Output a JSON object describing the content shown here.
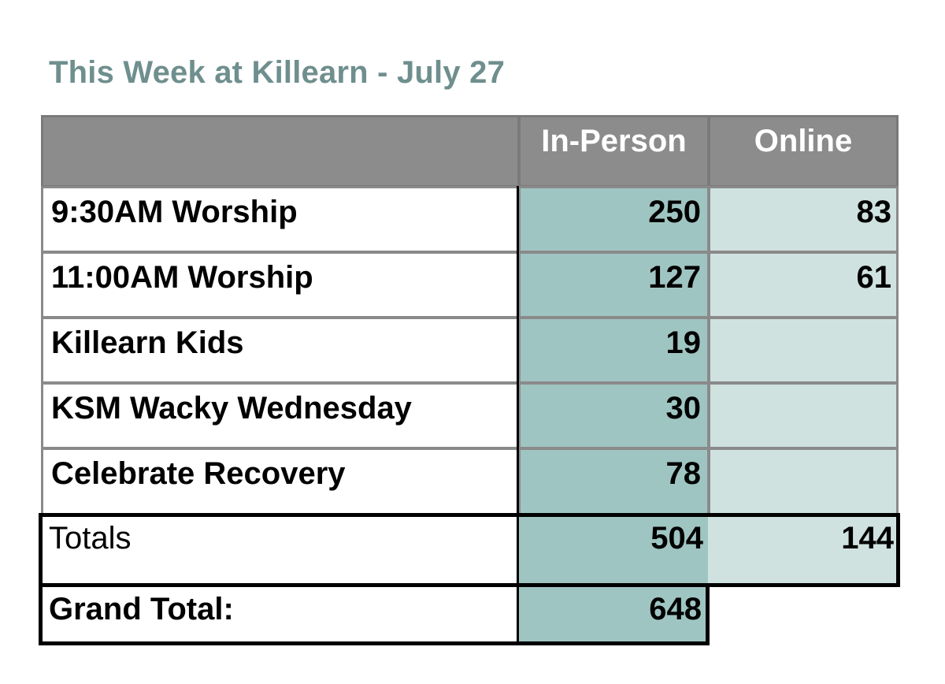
{
  "title": "This Week at Killearn - July 27",
  "table": {
    "headers": [
      "",
      "In-Person",
      "Online"
    ],
    "rows": [
      {
        "label": "9:30AM Worship",
        "in_person": "250",
        "online": "83"
      },
      {
        "label": "11:00AM Worship",
        "in_person": "127",
        "online": "61"
      },
      {
        "label": "Killearn Kids",
        "in_person": "19",
        "online": ""
      },
      {
        "label": "KSM Wacky Wednesday",
        "in_person": "30",
        "online": ""
      },
      {
        "label": "Celebrate Recovery",
        "in_person": "78",
        "online": ""
      }
    ],
    "totals": {
      "label": "Totals",
      "in_person": "504",
      "online": "144"
    },
    "grand_total": {
      "label": "Grand Total:",
      "value": "648"
    }
  },
  "colors": {
    "title": "#6f8f8e",
    "header_bg": "#8c8c8c",
    "in_person_bg": "#9fc5c2",
    "online_bg": "#cfe2df"
  }
}
